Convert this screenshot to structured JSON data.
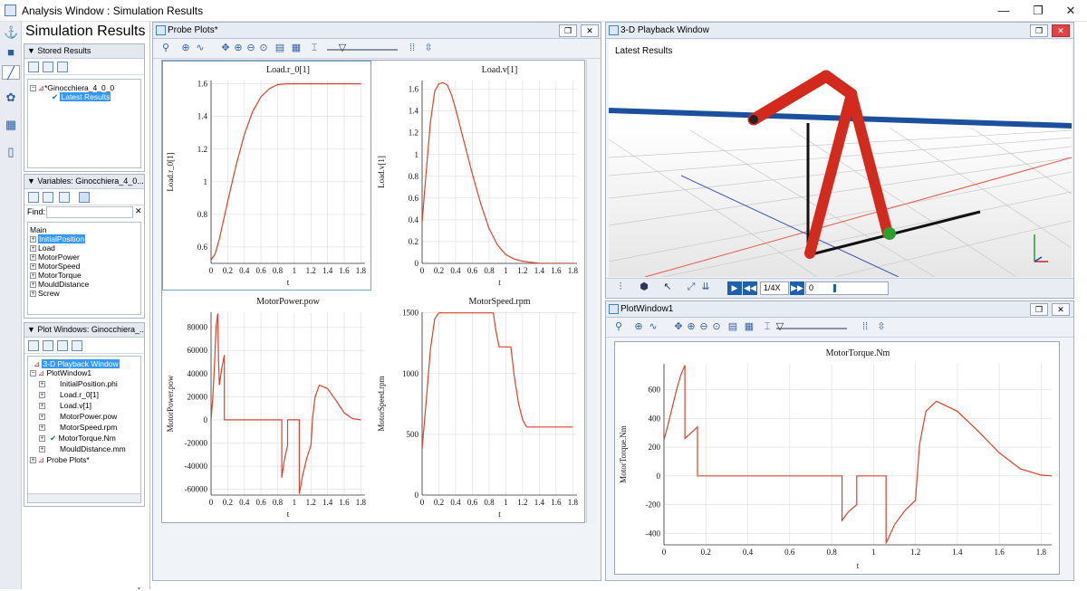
{
  "window": {
    "title": "Analysis Window : Simulation Results",
    "minimize": "—",
    "restore": "❐",
    "close": "✕"
  },
  "left_bar": {
    "icons": [
      "anchor-icon",
      "lock-icon",
      "chart-icon",
      "network-icon",
      "table-icon",
      "book-icon"
    ]
  },
  "sim": {
    "title": "Simulation Results",
    "stored": {
      "header": "▼ Stored Results",
      "root": "*Ginocchiera_4_0_0",
      "child": "Latest Results"
    },
    "variables": {
      "header": "▼ Variables: Ginocchiera_4_0...",
      "find_label": "Find:",
      "find_value": "",
      "clear": "✕",
      "root": "Main",
      "items": [
        "InitialPosition",
        "Load",
        "MotorPower",
        "MotorSpeed",
        "MotorTorque",
        "MouldDistance",
        "Screw"
      ]
    },
    "plotwins": {
      "header": "▼ Plot Windows: Ginocchiera_...",
      "items": [
        "3-D Playback Window",
        "PlotWindow1",
        "InitialPosition.phi",
        "Load.r_0[1]",
        "Load.v[1]",
        "MotorPower.pow",
        "MotorSpeed.rpm",
        "MotorTorque.Nm",
        "MouldDistance.mm",
        "Probe Plots*"
      ]
    }
  },
  "probe": {
    "title": "Probe Plots*",
    "restore": "❐",
    "close": "✕"
  },
  "playback": {
    "title": "3-D Playback Window",
    "label": "Latest Results",
    "speed": "1/4X",
    "time": "0",
    "restore": "❐",
    "close": "✕"
  },
  "plotwin": {
    "title": "PlotWindow1",
    "restore": "❐",
    "close": "✕"
  },
  "colors": {
    "curve": "#e0402a",
    "grid": "#dcdcdc",
    "selection": "#3399ff",
    "link_red": "#d42a1e",
    "rail_blue": "#1c4f9e"
  },
  "chart_data": [
    {
      "type": "line",
      "title": "Load.r_0[1]",
      "xlabel": "t",
      "ylabel": "Load.r_0[1]",
      "xlim": [
        0,
        1.85
      ],
      "ylim": [
        0.5,
        1.62
      ],
      "xticks": [
        0,
        0.2,
        0.4,
        0.6,
        0.8,
        1,
        1.2,
        1.4,
        1.6,
        1.8
      ],
      "yticks": [
        0.6,
        0.8,
        1.0,
        1.2,
        1.4,
        1.6
      ],
      "x": [
        0,
        0.05,
        0.1,
        0.2,
        0.3,
        0.4,
        0.5,
        0.6,
        0.7,
        0.8,
        0.9,
        1.0,
        1.2,
        1.4,
        1.6,
        1.8
      ],
      "y": [
        0.52,
        0.56,
        0.65,
        0.88,
        1.1,
        1.29,
        1.43,
        1.52,
        1.57,
        1.595,
        1.6,
        1.6,
        1.6,
        1.6,
        1.6,
        1.6
      ]
    },
    {
      "type": "line",
      "title": "Load.v[1]",
      "xlabel": "t",
      "ylabel": "Load.v[1]",
      "xlim": [
        0,
        1.85
      ],
      "ylim": [
        0,
        1.68
      ],
      "xticks": [
        0,
        0.2,
        0.4,
        0.6,
        0.8,
        1,
        1.2,
        1.4,
        1.6,
        1.8
      ],
      "yticks": [
        0,
        0.2,
        0.4,
        0.6,
        0.8,
        1.0,
        1.2,
        1.4,
        1.6
      ],
      "x": [
        0,
        0.05,
        0.1,
        0.15,
        0.2,
        0.25,
        0.3,
        0.35,
        0.4,
        0.5,
        0.6,
        0.7,
        0.8,
        0.9,
        1.0,
        1.1,
        1.2,
        1.3,
        1.4,
        1.6,
        1.8
      ],
      "y": [
        0.38,
        0.85,
        1.3,
        1.58,
        1.65,
        1.66,
        1.64,
        1.55,
        1.42,
        1.12,
        0.82,
        0.55,
        0.32,
        0.17,
        0.08,
        0.04,
        0.02,
        0.01,
        0.0,
        0.0,
        0.0
      ]
    },
    {
      "type": "line",
      "title": "MotorPower.pow",
      "xlabel": "t",
      "ylabel": "MotorPower.pow",
      "xlim": [
        0,
        1.85
      ],
      "ylim": [
        -65000,
        93000
      ],
      "xticks": [
        0,
        0.2,
        0.4,
        0.6,
        0.8,
        1,
        1.2,
        1.4,
        1.6,
        1.8
      ],
      "yticks": [
        -60000,
        -40000,
        -20000,
        0,
        20000,
        40000,
        60000,
        80000
      ],
      "x": [
        0,
        0.02,
        0.04,
        0.06,
        0.08,
        0.09,
        0.1,
        0.13,
        0.16,
        0.16,
        0.5,
        0.85,
        0.85,
        0.88,
        0.92,
        0.92,
        1.06,
        1.06,
        1.1,
        1.15,
        1.2,
        1.22,
        1.25,
        1.3,
        1.4,
        1.5,
        1.6,
        1.7,
        1.8
      ],
      "y": [
        0,
        18000,
        45000,
        80000,
        92000,
        50000,
        30000,
        45000,
        56000,
        0,
        0,
        0,
        -50000,
        -35000,
        -22000,
        0,
        0,
        -64000,
        -48000,
        -33000,
        -22000,
        2000,
        20000,
        30000,
        27000,
        17000,
        6000,
        1000,
        0
      ]
    },
    {
      "type": "line",
      "title": "MotorSpeed.rpm",
      "xlabel": "t",
      "ylabel": "MotorSpeed.rpm",
      "xlim": [
        0,
        1.85
      ],
      "ylim": [
        0,
        1505
      ],
      "xticks": [
        0,
        0.2,
        0.4,
        0.6,
        0.8,
        1,
        1.2,
        1.4,
        1.6,
        1.8
      ],
      "yticks": [
        0,
        500,
        1000,
        1500
      ],
      "x": [
        0,
        0.05,
        0.1,
        0.15,
        0.2,
        0.85,
        0.88,
        0.92,
        1.06,
        1.1,
        1.15,
        1.2,
        1.25,
        1.5,
        1.8
      ],
      "y": [
        380,
        780,
        1200,
        1450,
        1500,
        1500,
        1360,
        1220,
        1220,
        980,
        760,
        620,
        560,
        560,
        560
      ]
    },
    {
      "type": "line",
      "title": "MotorTorque.Nm",
      "xlabel": "t",
      "ylabel": "MotorTorque.Nm",
      "xlim": [
        0,
        1.85
      ],
      "ylim": [
        -480,
        780
      ],
      "xticks": [
        0,
        0.2,
        0.4,
        0.6,
        0.8,
        1,
        1.2,
        1.4,
        1.6,
        1.8
      ],
      "yticks": [
        -400,
        -200,
        0,
        200,
        400,
        600
      ],
      "x": [
        0,
        0.02,
        0.04,
        0.06,
        0.08,
        0.1,
        0.1,
        0.13,
        0.16,
        0.16,
        0.5,
        0.85,
        0.85,
        0.88,
        0.92,
        0.92,
        1.06,
        1.06,
        1.1,
        1.15,
        1.2,
        1.22,
        1.25,
        1.3,
        1.4,
        1.5,
        1.6,
        1.7,
        1.8,
        1.85
      ],
      "y": [
        250,
        360,
        480,
        600,
        700,
        770,
        260,
        300,
        340,
        0,
        0,
        0,
        -310,
        -250,
        -200,
        0,
        0,
        -470,
        -340,
        -240,
        -170,
        220,
        450,
        520,
        450,
        310,
        160,
        50,
        5,
        0
      ]
    }
  ]
}
